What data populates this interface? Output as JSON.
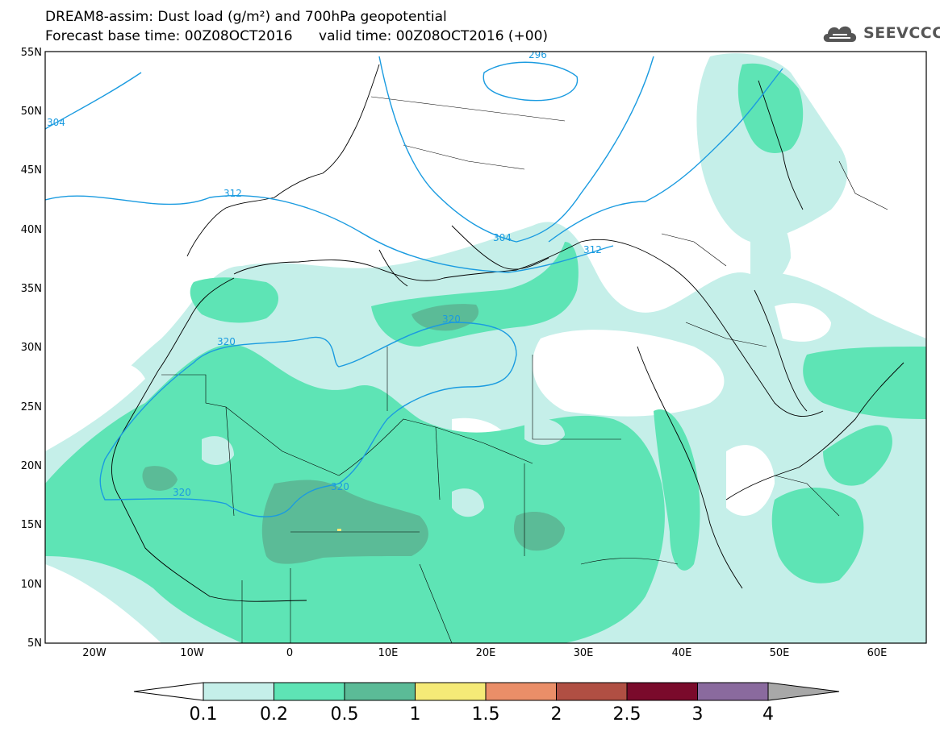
{
  "title": {
    "line1": "DREAM8-assim: Dust load (g/m²) and 700hPa geopotential",
    "line2": "Forecast base time: 00Z08OCT2016      valid time: 00Z08OCT2016 (+00)"
  },
  "logo": {
    "text": "SEEVCCC",
    "icon": "cloud-logo-icon"
  },
  "axes": {
    "lat_labels": [
      "55N",
      "50N",
      "45N",
      "40N",
      "35N",
      "30N",
      "25N",
      "20N",
      "15N",
      "10N",
      "5N"
    ],
    "lon_labels": [
      "20W",
      "10W",
      "0",
      "10E",
      "20E",
      "30E",
      "40E",
      "50E",
      "60E"
    ],
    "lat_range": [
      5,
      55
    ],
    "lon_range": [
      -25,
      65
    ]
  },
  "contours": {
    "labels": [
      "304",
      "296",
      "312",
      "304",
      "312",
      "320",
      "320",
      "320",
      "320"
    ],
    "color": "#1a9be0"
  },
  "colorbar": {
    "ticks": [
      "0.1",
      "0.2",
      "0.5",
      "1",
      "1.5",
      "2",
      "2.5",
      "3",
      "4"
    ],
    "colors": [
      "#c5efe9",
      "#5ee4b5",
      "#5bbb97",
      "#f5ea77",
      "#ea8e68",
      "#b04f43",
      "#7a0a2b",
      "#8a6a9e",
      "#a8a8a8"
    ],
    "under_color": "#ffffff"
  }
}
